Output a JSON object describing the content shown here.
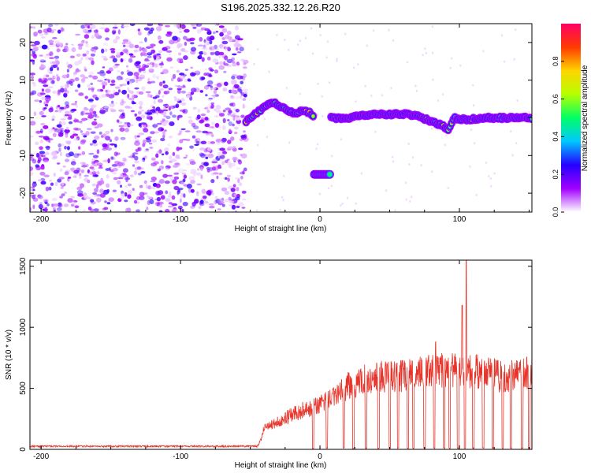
{
  "title": "S196.2025.332.12.26.R20",
  "colors": {
    "line": "#e8352b",
    "axis": "#000000",
    "colormap": [
      "#ffffff",
      "#a100ff",
      "#2400ff",
      "#00c8ff",
      "#00ff66",
      "#b6ff00",
      "#ffd400",
      "#ff3b00",
      "#ff0066"
    ]
  },
  "chart_data": [
    {
      "name": "spectrogram",
      "type": "heatmap",
      "xlabel": "Height of straight line (km)",
      "ylabel": "Frequency (Hz)",
      "xlim": [
        -208,
        152
      ],
      "ylim": [
        -25,
        25
      ],
      "x_ticks": [
        -200,
        -100,
        0,
        100
      ],
      "y_ticks": [
        -20,
        -10,
        0,
        10,
        20
      ],
      "noise_region_x": [
        -208,
        -53
      ],
      "signal_track": [
        {
          "x": -53,
          "f": -1
        },
        {
          "x": -48,
          "f": 0.5
        },
        {
          "x": -43,
          "f": 2
        },
        {
          "x": -38,
          "f": 3.5
        },
        {
          "x": -33,
          "f": 4
        },
        {
          "x": -28,
          "f": 3
        },
        {
          "x": -23,
          "f": 2
        },
        {
          "x": -18,
          "f": 1
        },
        {
          "x": -13,
          "f": 2
        },
        {
          "x": -8,
          "f": 1.5
        },
        {
          "x": -4,
          "f": 0.5
        }
      ],
      "signal_track_2": [
        {
          "x": 8,
          "f": 0
        },
        {
          "x": 20,
          "f": 0
        },
        {
          "x": 30,
          "f": 0.5
        },
        {
          "x": 40,
          "f": 1
        },
        {
          "x": 50,
          "f": 1
        },
        {
          "x": 60,
          "f": 1
        },
        {
          "x": 70,
          "f": 0.5
        },
        {
          "x": 80,
          "f": -1
        },
        {
          "x": 88,
          "f": -2
        },
        {
          "x": 92,
          "f": -3
        },
        {
          "x": 96,
          "f": 0
        },
        {
          "x": 105,
          "f": -0.5
        },
        {
          "x": 115,
          "f": 0
        },
        {
          "x": 130,
          "f": 0
        },
        {
          "x": 145,
          "f": 0
        },
        {
          "x": 152,
          "f": 0
        }
      ],
      "low_segment": {
        "x": [
          -4,
          7
        ],
        "f": -15
      },
      "colorbar": {
        "label": "Normalized spectral amplitude",
        "range": [
          0,
          1
        ],
        "ticks": [
          "0.0",
          "0.2",
          "0.4",
          "0.6",
          "0.8"
        ]
      }
    },
    {
      "name": "snr",
      "type": "line",
      "xlabel": "Height of straight line (km)",
      "ylabel": "SNR (10 * v/v)",
      "xlim": [
        -208,
        152
      ],
      "ylim": [
        0,
        1550
      ],
      "x_ticks": [
        -200,
        -100,
        0,
        100
      ],
      "y_ticks": [
        0,
        500,
        1000,
        1500
      ],
      "profile": [
        {
          "x": -208,
          "y": 25
        },
        {
          "x": -45,
          "y": 25
        },
        {
          "x": -42,
          "y": 80
        },
        {
          "x": -40,
          "y": 180
        },
        {
          "x": -30,
          "y": 230
        },
        {
          "x": -20,
          "y": 280
        },
        {
          "x": -10,
          "y": 330
        },
        {
          "x": 0,
          "y": 360
        },
        {
          "x": 10,
          "y": 430
        },
        {
          "x": 20,
          "y": 520
        },
        {
          "x": 30,
          "y": 570
        },
        {
          "x": 40,
          "y": 600
        },
        {
          "x": 50,
          "y": 600
        },
        {
          "x": 60,
          "y": 600
        },
        {
          "x": 70,
          "y": 620
        },
        {
          "x": 80,
          "y": 640
        },
        {
          "x": 90,
          "y": 650
        },
        {
          "x": 100,
          "y": 660
        },
        {
          "x": 110,
          "y": 640
        },
        {
          "x": 120,
          "y": 620
        },
        {
          "x": 130,
          "y": 600
        },
        {
          "x": 140,
          "y": 610
        },
        {
          "x": 152,
          "y": 630
        }
      ],
      "spikes": [
        {
          "x": 83,
          "y": 880
        },
        {
          "x": 84,
          "y": 760
        },
        {
          "x": 102,
          "y": 1180
        },
        {
          "x": 105,
          "y": 1550
        }
      ],
      "dropouts_x": [
        -5,
        5,
        17,
        24,
        33,
        42,
        50,
        56,
        63,
        67,
        75,
        82,
        89,
        93,
        99,
        104,
        110,
        117,
        124,
        131,
        137,
        145,
        150
      ]
    }
  ]
}
